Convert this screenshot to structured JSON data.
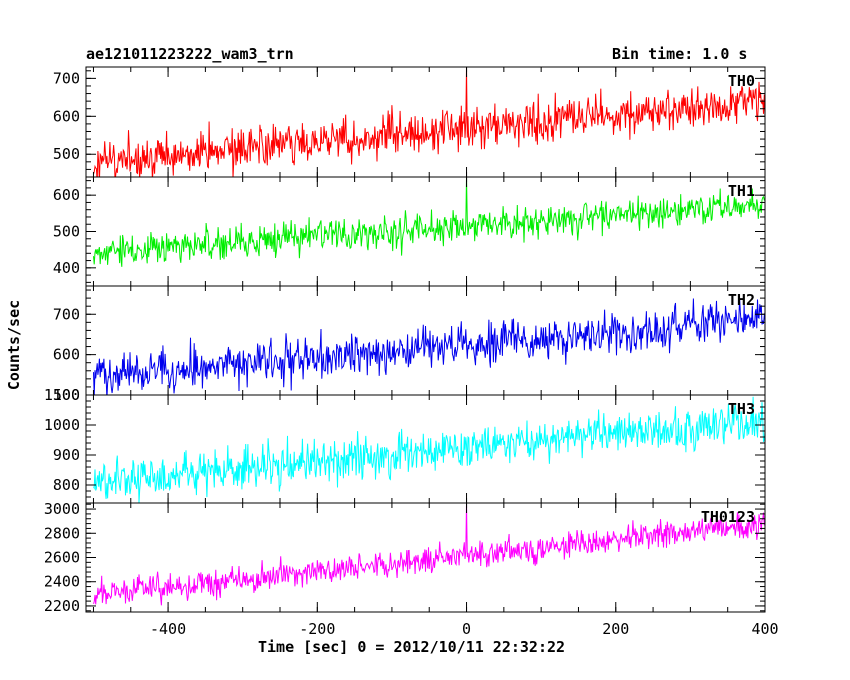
{
  "header": {
    "left_title": "ae121011223222_wam3_trn",
    "right_title": "Bin time: 1.0 s"
  },
  "xlabel": "Time [sec] 0 = 2012/10/11 22:32:22",
  "ylabel": "Counts/sec",
  "chart_data": [
    {
      "type": "line",
      "name": "TH0",
      "color": "#ff0000",
      "xlim": [
        -510,
        400
      ],
      "ylim": [
        440,
        730
      ],
      "yticks": [
        500,
        600,
        700
      ],
      "x_range": [
        -500,
        400
      ],
      "trend_start": 480,
      "trend_end": 635,
      "noise": 28,
      "spike": {
        "x": 0,
        "y": 730
      }
    },
    {
      "type": "line",
      "name": "TH1",
      "color": "#00ee00",
      "xlim": [
        -510,
        400
      ],
      "ylim": [
        350,
        650
      ],
      "yticks": [
        400,
        500,
        600
      ],
      "x_range": [
        -500,
        400
      ],
      "trend_start": 440,
      "trend_end": 575,
      "noise": 22,
      "spike": {
        "x": 0,
        "y": 650
      }
    },
    {
      "type": "line",
      "name": "TH2",
      "color": "#0000ee",
      "xlim": [
        -510,
        400
      ],
      "ylim": [
        500,
        770
      ],
      "yticks": [
        500,
        600,
        700
      ],
      "x_range": [
        -500,
        400
      ],
      "trend_start": 545,
      "trend_end": 690,
      "noise": 26,
      "spike": null
    },
    {
      "type": "line",
      "name": "TH3",
      "color": "#00ffff",
      "xlim": [
        -510,
        400
      ],
      "ylim": [
        740,
        1100
      ],
      "yticks": [
        800,
        900,
        1000,
        1100
      ],
      "x_range": [
        -500,
        400
      ],
      "trend_start": 810,
      "trend_end": 1015,
      "noise": 36,
      "spike": null
    },
    {
      "type": "line",
      "name": "TH0123",
      "color": "#ff00ff",
      "xlim": [
        -510,
        400
      ],
      "ylim": [
        2150,
        3050
      ],
      "yticks": [
        2200,
        2400,
        2600,
        2800,
        3000
      ],
      "x_range": [
        -500,
        400
      ],
      "trend_start": 2290,
      "trend_end": 2880,
      "noise": 55,
      "spike": {
        "x": 0,
        "y": 3050
      }
    }
  ],
  "x_ticks": [
    -400,
    -200,
    0,
    200,
    400
  ]
}
